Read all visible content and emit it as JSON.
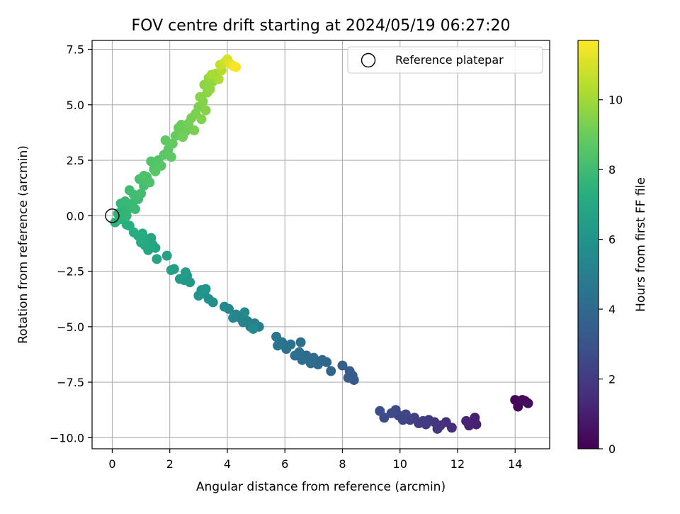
{
  "chart_data": {
    "type": "scatter",
    "title": "FOV centre drift starting at 2024/05/19 06:27:20",
    "xlabel": "Angular distance from reference (arcmin)",
    "ylabel": "Rotation from reference (arcmin)",
    "xlim": [
      -0.7,
      15.2
    ],
    "ylim": [
      -10.5,
      7.9
    ],
    "xticks": [
      0,
      2,
      4,
      6,
      8,
      10,
      12,
      14
    ],
    "xtick_labels": [
      "0",
      "2",
      "4",
      "6",
      "8",
      "10",
      "12",
      "14"
    ],
    "yticks": [
      -10.0,
      -7.5,
      -5.0,
      -2.5,
      0.0,
      2.5,
      5.0,
      7.5
    ],
    "ytick_labels": [
      "−10.0",
      "−7.5",
      "−5.0",
      "−2.5",
      "0.0",
      "2.5",
      "5.0",
      "7.5"
    ],
    "grid": true,
    "colormap": "viridis",
    "colorbar": {
      "label": "Hours from first FF file",
      "range": [
        0,
        11.7
      ],
      "ticks": [
        0,
        2,
        4,
        6,
        8,
        10
      ],
      "tick_labels": [
        "0",
        "2",
        "4",
        "6",
        "8",
        "10"
      ]
    },
    "reference": {
      "name": "Reference platepar",
      "x": 0.0,
      "y": 0.0
    },
    "legend": {
      "placement": "top-right",
      "entries": [
        "Reference platepar"
      ]
    },
    "points": [
      {
        "x": 14.0,
        "y": -8.3,
        "h": 0.1
      },
      {
        "x": 14.1,
        "y": -8.6,
        "h": 0.2
      },
      {
        "x": 14.25,
        "y": -8.3,
        "h": 0.3
      },
      {
        "x": 14.35,
        "y": -8.35,
        "h": 0.35
      },
      {
        "x": 14.45,
        "y": -8.45,
        "h": 0.4
      },
      {
        "x": 12.65,
        "y": -9.4,
        "h": 1.0
      },
      {
        "x": 12.6,
        "y": -9.1,
        "h": 1.05
      },
      {
        "x": 12.5,
        "y": -9.35,
        "h": 1.1
      },
      {
        "x": 12.4,
        "y": -9.45,
        "h": 1.15
      },
      {
        "x": 12.3,
        "y": -9.25,
        "h": 1.2
      },
      {
        "x": 11.8,
        "y": -9.55,
        "h": 1.5
      },
      {
        "x": 11.6,
        "y": -9.3,
        "h": 1.6
      },
      {
        "x": 11.4,
        "y": -9.45,
        "h": 1.7
      },
      {
        "x": 11.3,
        "y": -9.6,
        "h": 1.75
      },
      {
        "x": 11.2,
        "y": -9.3,
        "h": 1.8
      },
      {
        "x": 11.0,
        "y": -9.2,
        "h": 1.9
      },
      {
        "x": 10.9,
        "y": -9.4,
        "h": 2.0
      },
      {
        "x": 10.8,
        "y": -9.25,
        "h": 2.05
      },
      {
        "x": 10.65,
        "y": -9.35,
        "h": 2.1
      },
      {
        "x": 10.5,
        "y": -9.1,
        "h": 2.2
      },
      {
        "x": 10.35,
        "y": -9.2,
        "h": 2.3
      },
      {
        "x": 10.2,
        "y": -8.95,
        "h": 2.4
      },
      {
        "x": 10.1,
        "y": -9.2,
        "h": 2.45
      },
      {
        "x": 9.95,
        "y": -9.0,
        "h": 2.5
      },
      {
        "x": 9.85,
        "y": -8.75,
        "h": 2.6
      },
      {
        "x": 9.7,
        "y": -8.9,
        "h": 2.65
      },
      {
        "x": 9.45,
        "y": -9.1,
        "h": 2.7
      },
      {
        "x": 9.3,
        "y": -8.8,
        "h": 2.8
      },
      {
        "x": 8.4,
        "y": -7.4,
        "h": 3.3
      },
      {
        "x": 8.35,
        "y": -7.2,
        "h": 3.35
      },
      {
        "x": 8.2,
        "y": -7.3,
        "h": 3.4
      },
      {
        "x": 8.25,
        "y": -7.0,
        "h": 3.45
      },
      {
        "x": 8.0,
        "y": -6.75,
        "h": 3.5
      },
      {
        "x": 7.6,
        "y": -7.0,
        "h": 3.8
      },
      {
        "x": 7.45,
        "y": -6.6,
        "h": 3.85
      },
      {
        "x": 7.3,
        "y": -6.5,
        "h": 3.9
      },
      {
        "x": 7.15,
        "y": -6.7,
        "h": 3.95
      },
      {
        "x": 7.0,
        "y": -6.4,
        "h": 4.0
      },
      {
        "x": 6.9,
        "y": -6.65,
        "h": 4.05
      },
      {
        "x": 6.75,
        "y": -6.3,
        "h": 4.1
      },
      {
        "x": 6.6,
        "y": -6.5,
        "h": 4.15
      },
      {
        "x": 6.5,
        "y": -6.15,
        "h": 4.2
      },
      {
        "x": 6.35,
        "y": -6.3,
        "h": 4.25
      },
      {
        "x": 6.55,
        "y": -5.7,
        "h": 4.3
      },
      {
        "x": 6.2,
        "y": -5.8,
        "h": 4.35
      },
      {
        "x": 6.05,
        "y": -6.0,
        "h": 4.4
      },
      {
        "x": 5.9,
        "y": -5.7,
        "h": 4.45
      },
      {
        "x": 5.75,
        "y": -5.85,
        "h": 4.5
      },
      {
        "x": 5.7,
        "y": -5.45,
        "h": 4.55
      },
      {
        "x": 5.1,
        "y": -5.0,
        "h": 5.0
      },
      {
        "x": 4.95,
        "y": -4.85,
        "h": 5.05
      },
      {
        "x": 4.8,
        "y": -5.0,
        "h": 5.1
      },
      {
        "x": 4.7,
        "y": -4.75,
        "h": 5.15
      },
      {
        "x": 4.55,
        "y": -4.8,
        "h": 5.2
      },
      {
        "x": 4.45,
        "y": -4.6,
        "h": 5.25
      },
      {
        "x": 4.3,
        "y": -4.45,
        "h": 5.3
      },
      {
        "x": 4.2,
        "y": -4.6,
        "h": 5.35
      },
      {
        "x": 4.05,
        "y": -4.2,
        "h": 5.4
      },
      {
        "x": 3.9,
        "y": -4.1,
        "h": 5.45
      },
      {
        "x": 4.6,
        "y": -4.35,
        "h": 5.5
      },
      {
        "x": 4.9,
        "y": -5.1,
        "h": 5.55
      },
      {
        "x": 3.5,
        "y": -3.9,
        "h": 5.8
      },
      {
        "x": 3.35,
        "y": -3.75,
        "h": 5.85
      },
      {
        "x": 3.2,
        "y": -3.5,
        "h": 5.9
      },
      {
        "x": 3.1,
        "y": -3.35,
        "h": 5.95
      },
      {
        "x": 3.0,
        "y": -3.6,
        "h": 6.0
      },
      {
        "x": 3.25,
        "y": -3.3,
        "h": 6.05
      },
      {
        "x": 2.7,
        "y": -3.0,
        "h": 6.2
      },
      {
        "x": 2.6,
        "y": -2.7,
        "h": 6.25
      },
      {
        "x": 2.5,
        "y": -2.9,
        "h": 6.3
      },
      {
        "x": 2.35,
        "y": -2.85,
        "h": 6.35
      },
      {
        "x": 2.55,
        "y": -2.55,
        "h": 6.4
      },
      {
        "x": 2.15,
        "y": -2.4,
        "h": 6.5
      },
      {
        "x": 2.05,
        "y": -2.45,
        "h": 6.55
      },
      {
        "x": 1.9,
        "y": -1.8,
        "h": 6.7
      },
      {
        "x": 1.55,
        "y": -1.95,
        "h": 6.75
      },
      {
        "x": 1.5,
        "y": -1.45,
        "h": 6.8
      },
      {
        "x": 1.4,
        "y": -1.3,
        "h": 6.85
      },
      {
        "x": 1.35,
        "y": -1.0,
        "h": 6.9
      },
      {
        "x": 1.25,
        "y": -1.55,
        "h": 6.95
      },
      {
        "x": 1.15,
        "y": -1.35,
        "h": 7.0
      },
      {
        "x": 1.1,
        "y": -1.05,
        "h": 7.05
      },
      {
        "x": 1.0,
        "y": -1.2,
        "h": 7.1
      },
      {
        "x": 0.9,
        "y": -0.9,
        "h": 7.15
      },
      {
        "x": 1.05,
        "y": -0.8,
        "h": 7.2
      },
      {
        "x": 0.75,
        "y": -0.75,
        "h": 7.25
      },
      {
        "x": 0.6,
        "y": -0.45,
        "h": 7.3
      },
      {
        "x": 0.5,
        "y": -0.4,
        "h": 7.35
      },
      {
        "x": 0.3,
        "y": -0.15,
        "h": 7.4
      },
      {
        "x": 0.1,
        "y": -0.3,
        "h": 7.5
      },
      {
        "x": 0.2,
        "y": 0.1,
        "h": 7.55
      },
      {
        "x": 0.35,
        "y": 0.3,
        "h": 7.6
      },
      {
        "x": 0.5,
        "y": 0.0,
        "h": 7.65
      },
      {
        "x": 0.6,
        "y": 0.35,
        "h": 7.7
      },
      {
        "x": 0.3,
        "y": 0.55,
        "h": 7.75
      },
      {
        "x": 0.45,
        "y": 0.65,
        "h": 7.8
      },
      {
        "x": 0.7,
        "y": 0.55,
        "h": 7.85
      },
      {
        "x": 0.8,
        "y": 0.3,
        "h": 7.9
      },
      {
        "x": 0.9,
        "y": 0.75,
        "h": 7.95
      },
      {
        "x": 0.6,
        "y": 1.15,
        "h": 8.0
      },
      {
        "x": 0.75,
        "y": 0.95,
        "h": 8.05
      },
      {
        "x": 1.0,
        "y": 1.0,
        "h": 8.1
      },
      {
        "x": 1.1,
        "y": 1.35,
        "h": 8.15
      },
      {
        "x": 0.95,
        "y": 1.65,
        "h": 8.2
      },
      {
        "x": 1.2,
        "y": 1.75,
        "h": 8.25
      },
      {
        "x": 1.3,
        "y": 1.5,
        "h": 8.3
      },
      {
        "x": 1.1,
        "y": 1.8,
        "h": 8.35
      },
      {
        "x": 1.45,
        "y": 2.1,
        "h": 8.4
      },
      {
        "x": 1.35,
        "y": 2.45,
        "h": 8.45
      },
      {
        "x": 1.6,
        "y": 2.5,
        "h": 8.5
      },
      {
        "x": 1.7,
        "y": 2.25,
        "h": 8.55
      },
      {
        "x": 1.5,
        "y": 2.0,
        "h": 8.6
      },
      {
        "x": 1.8,
        "y": 2.75,
        "h": 8.65
      },
      {
        "x": 1.95,
        "y": 3.0,
        "h": 8.7
      },
      {
        "x": 2.05,
        "y": 2.65,
        "h": 8.75
      },
      {
        "x": 1.85,
        "y": 3.4,
        "h": 8.8
      },
      {
        "x": 2.1,
        "y": 3.25,
        "h": 8.85
      },
      {
        "x": 2.2,
        "y": 3.6,
        "h": 8.9
      },
      {
        "x": 2.3,
        "y": 3.95,
        "h": 8.95
      },
      {
        "x": 2.4,
        "y": 4.1,
        "h": 9.0
      },
      {
        "x": 2.55,
        "y": 3.8,
        "h": 9.05
      },
      {
        "x": 2.45,
        "y": 3.55,
        "h": 9.1
      },
      {
        "x": 2.65,
        "y": 4.15,
        "h": 9.15
      },
      {
        "x": 2.75,
        "y": 4.4,
        "h": 9.2
      },
      {
        "x": 2.85,
        "y": 3.85,
        "h": 9.25
      },
      {
        "x": 2.9,
        "y": 4.6,
        "h": 9.3
      },
      {
        "x": 3.0,
        "y": 4.9,
        "h": 9.35
      },
      {
        "x": 3.1,
        "y": 4.35,
        "h": 9.4
      },
      {
        "x": 3.15,
        "y": 5.15,
        "h": 9.45
      },
      {
        "x": 3.25,
        "y": 4.75,
        "h": 9.5
      },
      {
        "x": 3.05,
        "y": 5.35,
        "h": 9.55
      },
      {
        "x": 3.3,
        "y": 5.55,
        "h": 9.6
      },
      {
        "x": 3.2,
        "y": 5.9,
        "h": 9.65
      },
      {
        "x": 3.4,
        "y": 5.7,
        "h": 9.7
      },
      {
        "x": 3.5,
        "y": 6.05,
        "h": 9.75
      },
      {
        "x": 3.35,
        "y": 6.2,
        "h": 9.8
      },
      {
        "x": 3.6,
        "y": 6.4,
        "h": 10.0
      },
      {
        "x": 3.45,
        "y": 6.35,
        "h": 10.1
      },
      {
        "x": 3.7,
        "y": 6.15,
        "h": 10.2
      },
      {
        "x": 3.8,
        "y": 6.55,
        "h": 10.4
      },
      {
        "x": 3.75,
        "y": 6.8,
        "h": 10.6
      },
      {
        "x": 3.9,
        "y": 6.9,
        "h": 10.8
      },
      {
        "x": 4.0,
        "y": 7.05,
        "h": 11.0
      },
      {
        "x": 4.1,
        "y": 6.85,
        "h": 11.2
      },
      {
        "x": 4.2,
        "y": 6.75,
        "h": 11.4
      },
      {
        "x": 4.3,
        "y": 6.7,
        "h": 11.6
      }
    ]
  }
}
